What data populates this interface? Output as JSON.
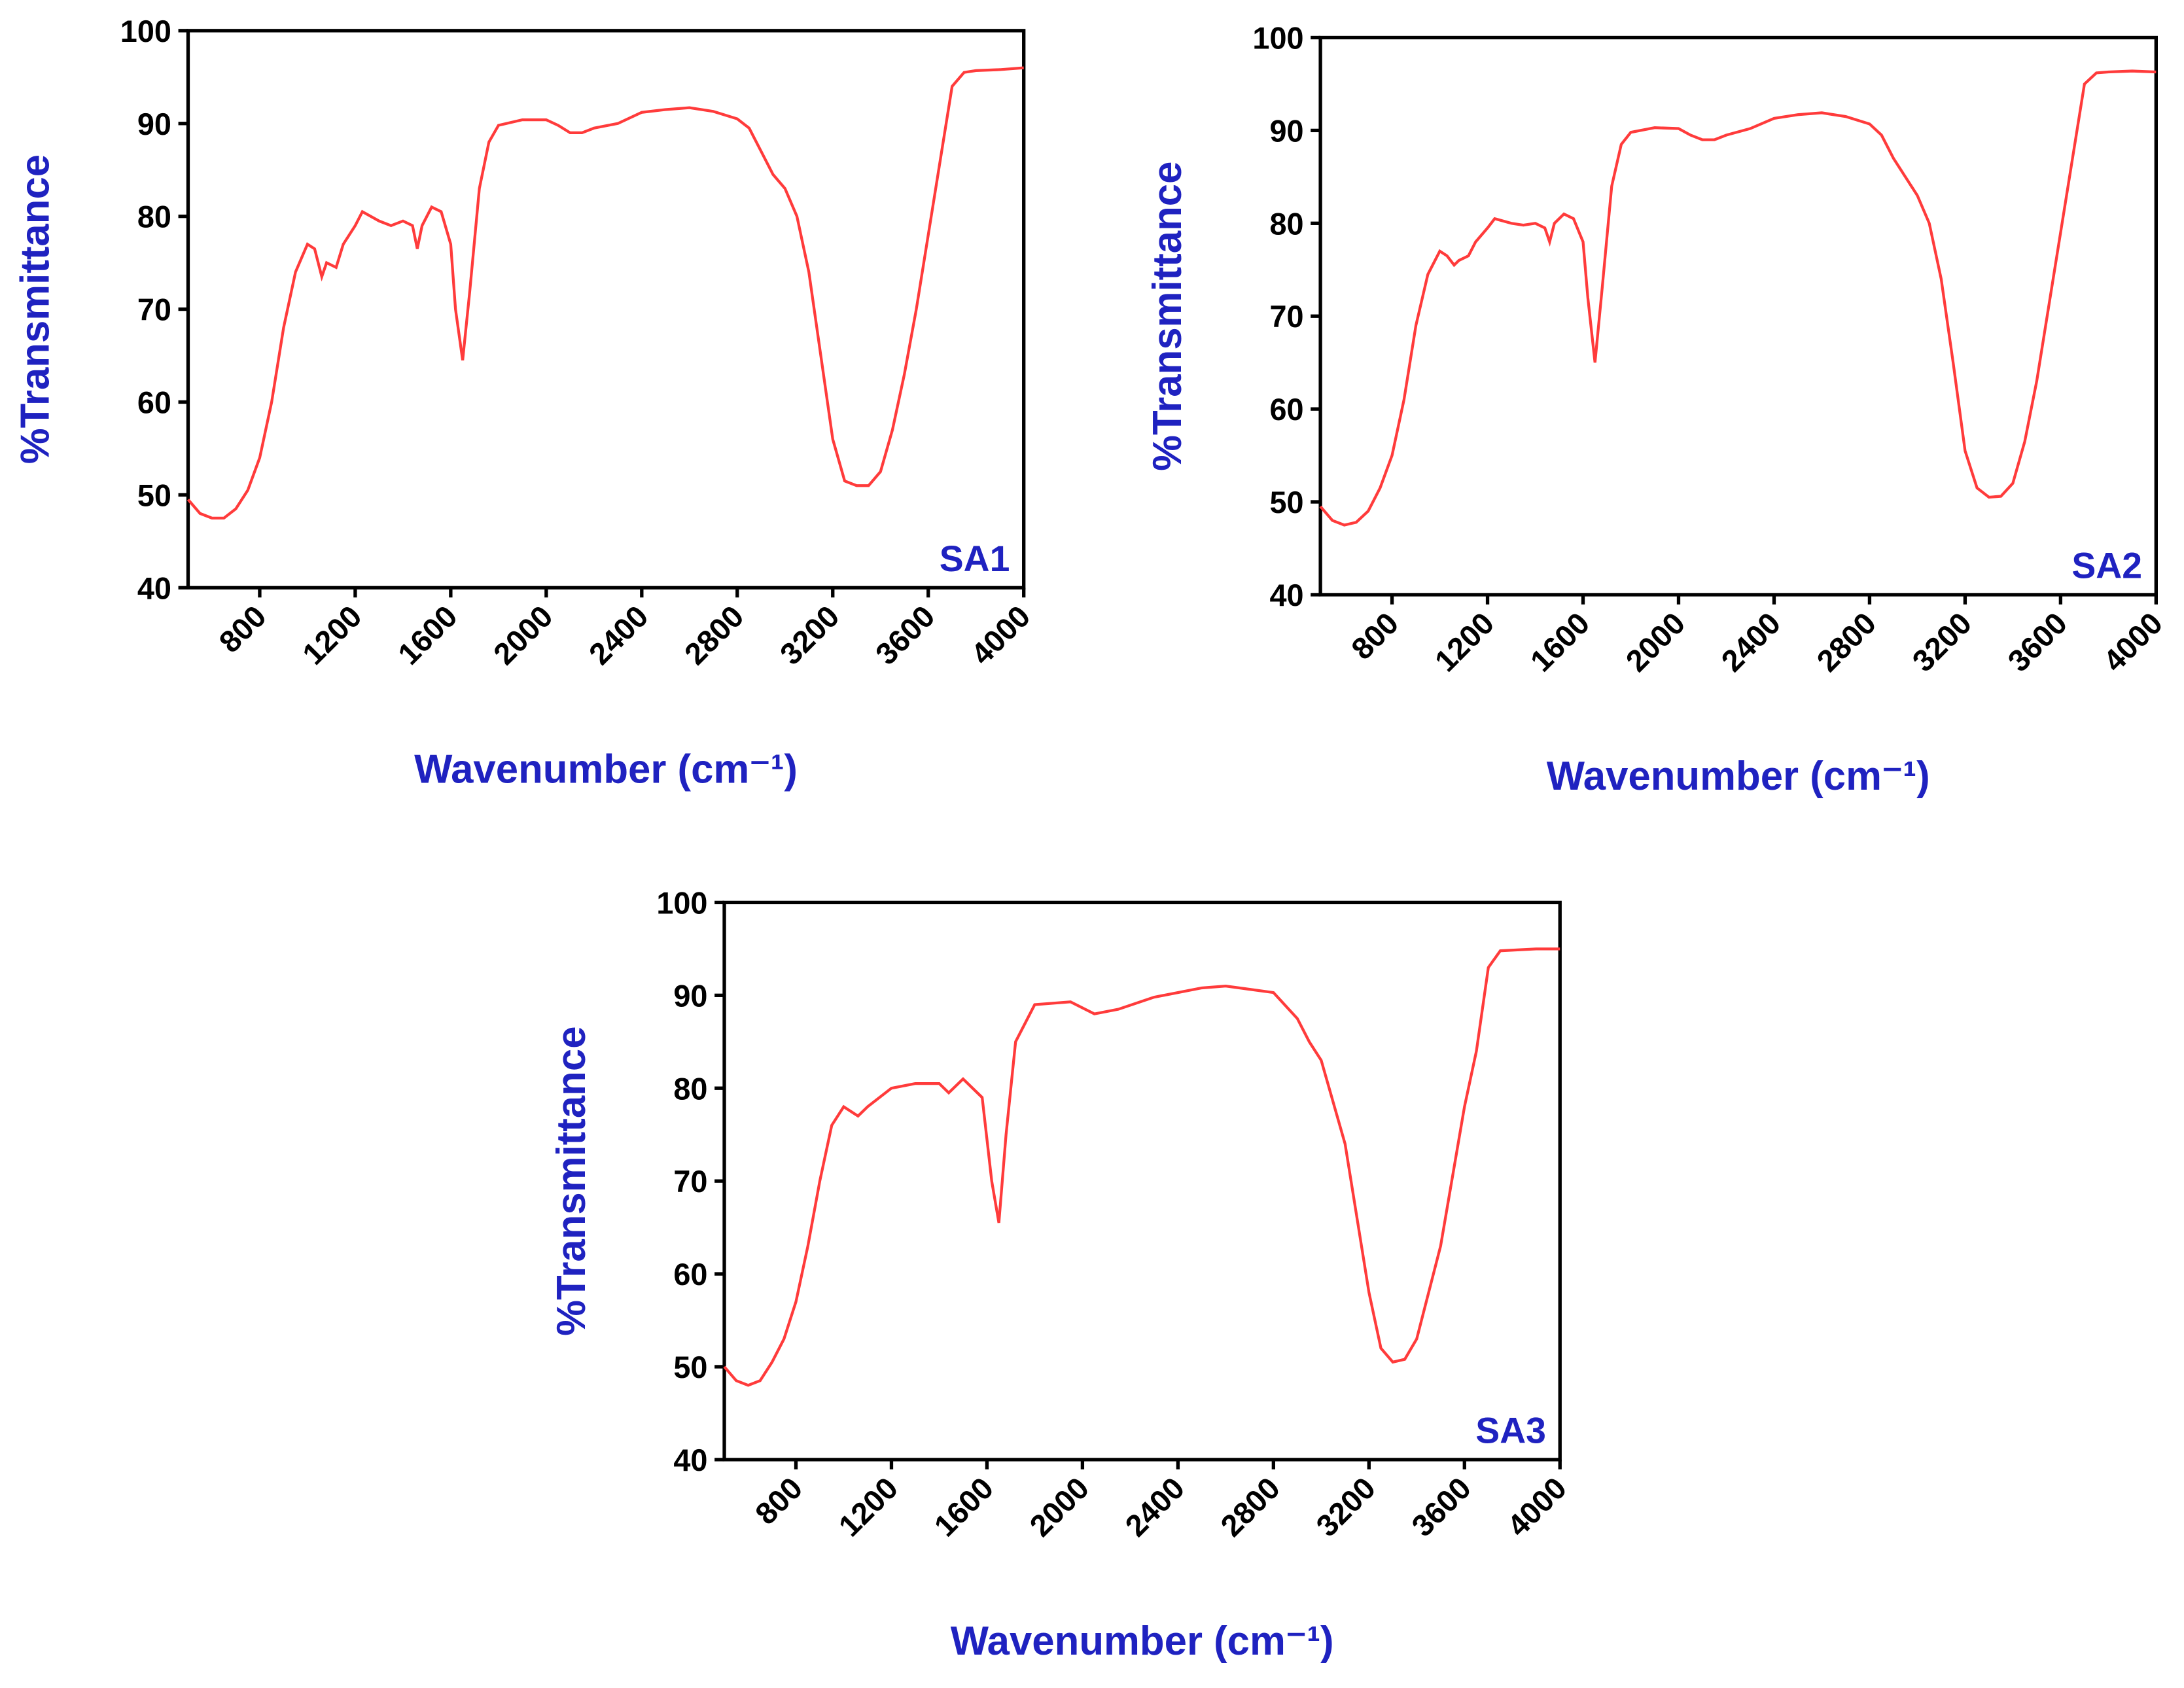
{
  "chart_data": [
    {
      "type": "line",
      "color": "#ff3b3b",
      "x_label": "Wavenumber (cm⁻¹)",
      "y_label": "%Transmittance",
      "annotation": "SA1",
      "xlim": [
        500,
        4000
      ],
      "ylim": [
        40,
        100
      ],
      "xticks": [
        800,
        1200,
        1600,
        2000,
        2400,
        2800,
        3200,
        3600,
        4000
      ],
      "yticks": [
        40,
        50,
        60,
        70,
        80,
        90,
        100
      ],
      "x": [
        500,
        550,
        600,
        650,
        700,
        750,
        800,
        850,
        900,
        950,
        1000,
        1030,
        1060,
        1080,
        1120,
        1150,
        1200,
        1230,
        1300,
        1350,
        1400,
        1440,
        1460,
        1480,
        1520,
        1560,
        1600,
        1620,
        1650,
        1680,
        1720,
        1760,
        1800,
        1900,
        2000,
        2050,
        2100,
        2150,
        2200,
        2300,
        2400,
        2500,
        2600,
        2700,
        2800,
        2850,
        2900,
        2950,
        3000,
        3050,
        3100,
        3150,
        3200,
        3250,
        3300,
        3350,
        3400,
        3450,
        3500,
        3550,
        3600,
        3650,
        3700,
        3750,
        3800,
        3900,
        4000
      ],
      "values": [
        49.5,
        48,
        47.5,
        47.5,
        48.5,
        50.5,
        54,
        60,
        68,
        74,
        77,
        76.5,
        73.5,
        75,
        74.5,
        77,
        79,
        80.5,
        79.5,
        79,
        79.5,
        79,
        76.5,
        79,
        81,
        80.5,
        77,
        70,
        64.5,
        72,
        83,
        88,
        89.8,
        90.4,
        90.4,
        89.8,
        89,
        89,
        89.5,
        90,
        91.2,
        91.5,
        91.7,
        91.3,
        90.5,
        89.5,
        87,
        84.5,
        83,
        80,
        74,
        65,
        56,
        51.5,
        51,
        51,
        52.5,
        57,
        63,
        70,
        78,
        86,
        94,
        95.5,
        95.7,
        95.8,
        96
      ]
    },
    {
      "type": "line",
      "color": "#ff3b3b",
      "x_label": "Wavenumber (cm⁻¹)",
      "y_label": "%Transmittance",
      "annotation": "SA2",
      "xlim": [
        500,
        4000
      ],
      "ylim": [
        40,
        100
      ],
      "xticks": [
        800,
        1200,
        1600,
        2000,
        2400,
        2800,
        3200,
        3600,
        4000
      ],
      "yticks": [
        40,
        50,
        60,
        70,
        80,
        90,
        100
      ],
      "x": [
        500,
        550,
        600,
        650,
        700,
        750,
        800,
        850,
        900,
        950,
        1000,
        1030,
        1060,
        1080,
        1120,
        1150,
        1200,
        1230,
        1300,
        1350,
        1400,
        1440,
        1460,
        1480,
        1520,
        1560,
        1600,
        1620,
        1650,
        1680,
        1720,
        1760,
        1800,
        1900,
        2000,
        2050,
        2100,
        2150,
        2200,
        2300,
        2400,
        2500,
        2600,
        2700,
        2800,
        2850,
        2900,
        2950,
        3000,
        3050,
        3100,
        3150,
        3200,
        3250,
        3300,
        3350,
        3400,
        3450,
        3500,
        3550,
        3600,
        3650,
        3700,
        3750,
        3800,
        3900,
        4000
      ],
      "values": [
        49.5,
        48,
        47.5,
        47.8,
        49,
        51.5,
        55,
        61,
        69,
        74.5,
        77,
        76.5,
        75.5,
        76,
        76.5,
        78,
        79.5,
        80.5,
        80,
        79.8,
        80,
        79.5,
        78,
        80,
        81,
        80.5,
        78,
        72,
        65,
        73,
        84,
        88.5,
        89.8,
        90.3,
        90.2,
        89.5,
        89,
        89,
        89.5,
        90.2,
        91.3,
        91.7,
        91.9,
        91.5,
        90.7,
        89.5,
        87,
        85,
        83,
        80,
        74,
        65,
        55.5,
        51.5,
        50.5,
        50.6,
        52,
        56.5,
        63,
        71,
        79,
        87,
        95,
        96.2,
        96.3,
        96.4,
        96.3
      ]
    },
    {
      "type": "line",
      "color": "#ff3b3b",
      "x_label": "Wavenumber (cm⁻¹)",
      "y_label": "%Transmittance",
      "annotation": "SA3",
      "xlim": [
        500,
        4000
      ],
      "ylim": [
        40,
        100
      ],
      "xticks": [
        800,
        1200,
        1600,
        2000,
        2400,
        2800,
        3200,
        3600,
        4000
      ],
      "yticks": [
        40,
        50,
        60,
        70,
        80,
        90,
        100
      ],
      "x": [
        500,
        550,
        600,
        650,
        700,
        750,
        800,
        850,
        900,
        950,
        1000,
        1060,
        1100,
        1200,
        1300,
        1400,
        1440,
        1500,
        1580,
        1620,
        1650,
        1680,
        1720,
        1800,
        1950,
        2050,
        2150,
        2300,
        2500,
        2600,
        2800,
        2900,
        2950,
        3000,
        3100,
        3200,
        3250,
        3300,
        3350,
        3400,
        3500,
        3600,
        3650,
        3700,
        3750,
        3900,
        4000
      ],
      "values": [
        50,
        48.5,
        48,
        48.5,
        50.5,
        53,
        57,
        63,
        70,
        76,
        78,
        77,
        78,
        80,
        80.5,
        80.5,
        79.5,
        81,
        79,
        70,
        65.5,
        75,
        85,
        89,
        89.3,
        88,
        88.5,
        89.8,
        90.8,
        91,
        90.3,
        87.5,
        85,
        83,
        74,
        58,
        52,
        50.5,
        50.8,
        53,
        63,
        78,
        84,
        93,
        94.8,
        95,
        95
      ]
    }
  ]
}
